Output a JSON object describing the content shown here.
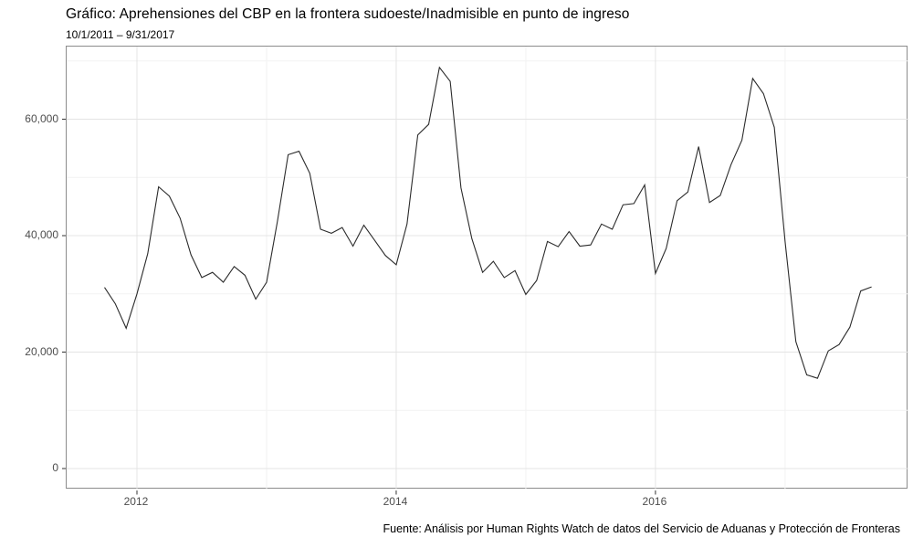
{
  "chart_data": {
    "type": "line",
    "title": "Gráfico: Aprehensiones del CBP en la frontera sudoeste/Inadmisible en punto de ingreso",
    "subtitle": "10/1/2011 – 9/31/2017",
    "caption": "Fuente: Análisis por Human Rights Watch de datos del Servicio de Aduanas y Protección de Fronteras",
    "xlabel": "",
    "ylabel": "",
    "ylim": [
      -3500,
      72500
    ],
    "x_start": "2011-10",
    "x_end": "2017-09",
    "grid": "on",
    "legend": "none",
    "series": [
      {
        "name": "Aprehensiones e inadmisibles mensuales",
        "dates": [
          "2011-10",
          "2011-11",
          "2011-12",
          "2012-01",
          "2012-02",
          "2012-03",
          "2012-04",
          "2012-05",
          "2012-06",
          "2012-07",
          "2012-08",
          "2012-09",
          "2012-10",
          "2012-11",
          "2012-12",
          "2013-01",
          "2013-02",
          "2013-03",
          "2013-04",
          "2013-05",
          "2013-06",
          "2013-07",
          "2013-08",
          "2013-09",
          "2013-10",
          "2013-11",
          "2013-12",
          "2014-01",
          "2014-02",
          "2014-03",
          "2014-04",
          "2014-05",
          "2014-06",
          "2014-07",
          "2014-08",
          "2014-09",
          "2014-10",
          "2014-11",
          "2014-12",
          "2015-01",
          "2015-02",
          "2015-03",
          "2015-04",
          "2015-05",
          "2015-06",
          "2015-07",
          "2015-08",
          "2015-09",
          "2015-10",
          "2015-11",
          "2015-12",
          "2016-01",
          "2016-02",
          "2016-03",
          "2016-04",
          "2016-05",
          "2016-06",
          "2016-07",
          "2016-08",
          "2016-09",
          "2016-10",
          "2016-11",
          "2016-12",
          "2017-01",
          "2017-02",
          "2017-03",
          "2017-04",
          "2017-05",
          "2017-06",
          "2017-07",
          "2017-08",
          "2017-09"
        ],
        "values": [
          31100,
          28300,
          24100,
          30000,
          36900,
          48400,
          46800,
          43000,
          36700,
          32800,
          33700,
          32000,
          34700,
          33200,
          29100,
          32000,
          42400,
          53900,
          54500,
          50700,
          41100,
          40400,
          41400,
          38200,
          41800,
          39200,
          36600,
          35000,
          42000,
          57300,
          59100,
          68900,
          66500,
          48200,
          39500,
          33700,
          35600,
          32800,
          34000,
          29900,
          32300,
          39000,
          38100,
          40700,
          38200,
          38400,
          42000,
          41100,
          45300,
          45500,
          48700,
          33500,
          37800,
          46000,
          47500,
          55300,
          45700,
          46900,
          52200,
          56400,
          67000,
          64400,
          58600,
          39000,
          21800,
          16100,
          15500,
          20200,
          21300,
          24300,
          30500,
          31200
        ]
      }
    ],
    "x_ticks": [
      {
        "label": "2012",
        "date": "2012-01"
      },
      {
        "label": "2014",
        "date": "2014-01"
      },
      {
        "label": "2016",
        "date": "2016-01"
      }
    ],
    "x_minor_gridlines": [
      "2013-01",
      "2015-01",
      "2017-01"
    ],
    "y_ticks": [
      {
        "label": "0",
        "value": 0
      },
      {
        "label": "20,000",
        "value": 20000
      },
      {
        "label": "40,000",
        "value": 40000
      },
      {
        "label": "60,000",
        "value": 60000
      }
    ],
    "y_minor_gridlines": [
      10000,
      30000,
      50000,
      70000
    ],
    "colors": {
      "line": "#2b2b2b",
      "grid_major": "#e4e4e4",
      "grid_minor": "#f2f2f2",
      "panel_border": "#8c8c8c",
      "tick_mark": "#333333",
      "tick_label": "#4d4d4d",
      "background": "#ffffff",
      "text": "#000000"
    }
  }
}
